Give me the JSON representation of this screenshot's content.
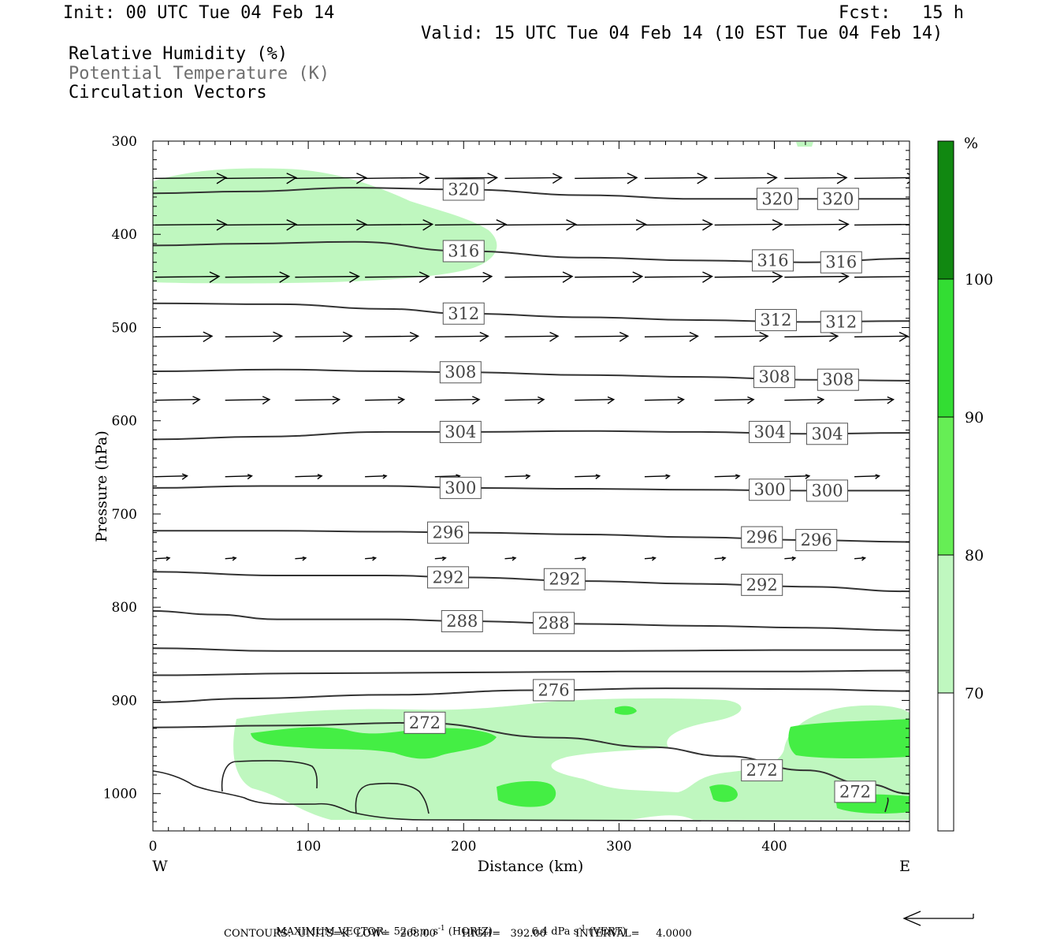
{
  "header": {
    "init": "Init: 00 UTC Tue 04 Feb 14",
    "fcst": "Fcst:   15 h",
    "valid": "Valid: 15 UTC Tue 04 Feb 14 (10 EST Tue 04 Feb 14)"
  },
  "legend": {
    "line1": "Relative Humidity (%)",
    "line2": "Potential Temperature (K)",
    "line3": "Circulation Vectors"
  },
  "chart_data": {
    "type": "contour",
    "xlabel": "Distance (km)",
    "ylabel": "Pressure (hPa)",
    "xlim": [
      0,
      487
    ],
    "ylim": [
      1040,
      300
    ],
    "x_ticks": [
      0,
      100,
      200,
      300,
      400
    ],
    "y_ticks": [
      300,
      400,
      500,
      600,
      700,
      800,
      900,
      1000
    ],
    "x_end_labels": {
      "left": "W",
      "right": "E"
    },
    "colorbar": {
      "unit": "%",
      "levels": [
        70,
        80,
        90,
        100
      ],
      "colors": [
        "#ffffff",
        "#bff7bf",
        "#66ee55",
        "#33dd33",
        "#118811"
      ]
    },
    "theta_contours": [
      {
        "label": "320",
        "points": [
          [
            0,
            356
          ],
          [
            60,
            354
          ],
          [
            130,
            350
          ],
          [
            200,
            352
          ],
          [
            280,
            358
          ],
          [
            350,
            362
          ],
          [
            420,
            362
          ],
          [
            487,
            362
          ]
        ]
      },
      {
        "label": "316",
        "points": [
          [
            0,
            412
          ],
          [
            60,
            410
          ],
          [
            130,
            408
          ],
          [
            200,
            418
          ],
          [
            280,
            425
          ],
          [
            350,
            428
          ],
          [
            420,
            430
          ],
          [
            487,
            426
          ]
        ]
      },
      {
        "label": "312",
        "points": [
          [
            0,
            474
          ],
          [
            80,
            475
          ],
          [
            150,
            480
          ],
          [
            200,
            485
          ],
          [
            280,
            489
          ],
          [
            350,
            492
          ],
          [
            420,
            494
          ],
          [
            487,
            493
          ]
        ]
      },
      {
        "label": "308",
        "points": [
          [
            0,
            547
          ],
          [
            80,
            545
          ],
          [
            150,
            547
          ],
          [
            200,
            548
          ],
          [
            280,
            551
          ],
          [
            350,
            553
          ],
          [
            420,
            556
          ],
          [
            487,
            557
          ]
        ]
      },
      {
        "label": "304",
        "points": [
          [
            0,
            620
          ],
          [
            70,
            617
          ],
          [
            150,
            612
          ],
          [
            200,
            612
          ],
          [
            280,
            611
          ],
          [
            350,
            612
          ],
          [
            420,
            614
          ],
          [
            487,
            613
          ]
        ]
      },
      {
        "label": "300",
        "points": [
          [
            0,
            672
          ],
          [
            70,
            670
          ],
          [
            150,
            670
          ],
          [
            200,
            672
          ],
          [
            280,
            673
          ],
          [
            350,
            674
          ],
          [
            420,
            675
          ],
          [
            487,
            675
          ]
        ]
      },
      {
        "label": "296",
        "points": [
          [
            0,
            718
          ],
          [
            80,
            718
          ],
          [
            150,
            719
          ],
          [
            200,
            720
          ],
          [
            280,
            722
          ],
          [
            350,
            725
          ],
          [
            420,
            728
          ],
          [
            487,
            730
          ]
        ]
      },
      {
        "label": "292",
        "points": [
          [
            0,
            762
          ],
          [
            80,
            766
          ],
          [
            150,
            766
          ],
          [
            200,
            768
          ],
          [
            280,
            772
          ],
          [
            350,
            775
          ],
          [
            420,
            778
          ],
          [
            487,
            783
          ]
        ]
      },
      {
        "label": "288",
        "points": [
          [
            0,
            804
          ],
          [
            40,
            808
          ],
          [
            80,
            813
          ],
          [
            150,
            813
          ],
          [
            200,
            815
          ],
          [
            280,
            818
          ],
          [
            350,
            820
          ],
          [
            420,
            822
          ],
          [
            487,
            825
          ]
        ]
      },
      {
        "points": [
          [
            0,
            844
          ],
          [
            80,
            847
          ],
          [
            200,
            847
          ],
          [
            300,
            847
          ],
          [
            400,
            846
          ],
          [
            487,
            846
          ]
        ]
      },
      {
        "points": [
          [
            0,
            873
          ],
          [
            100,
            871
          ],
          [
            200,
            870
          ],
          [
            300,
            869
          ],
          [
            400,
            869
          ],
          [
            487,
            868
          ]
        ]
      },
      {
        "label": "276",
        "points": [
          [
            0,
            902
          ],
          [
            60,
            898
          ],
          [
            150,
            894
          ],
          [
            250,
            889
          ],
          [
            330,
            887
          ],
          [
            420,
            888
          ],
          [
            487,
            890
          ]
        ]
      },
      {
        "label": "272",
        "points": [
          [
            0,
            929
          ],
          [
            80,
            927
          ],
          [
            170,
            924
          ],
          [
            260,
            940
          ],
          [
            320,
            950
          ],
          [
            370,
            960
          ],
          [
            420,
            975
          ],
          [
            460,
            990
          ],
          [
            487,
            1000
          ]
        ]
      }
    ],
    "theta_label_positions": [
      {
        "label": "320",
        "x": [
          200,
          402,
          441
        ],
        "p": [
          352,
          362,
          362
        ]
      },
      {
        "label": "316",
        "x": [
          200,
          399,
          443
        ],
        "p": [
          418,
          428,
          430
        ]
      },
      {
        "label": "312",
        "x": [
          200,
          401,
          443
        ],
        "p": [
          485,
          492,
          494
        ]
      },
      {
        "label": "308",
        "x": [
          198,
          400,
          441
        ],
        "p": [
          548,
          553,
          556
        ]
      },
      {
        "label": "304",
        "x": [
          198,
          397,
          434
        ],
        "p": [
          612,
          612,
          614
        ]
      },
      {
        "label": "300",
        "x": [
          198,
          397,
          434
        ],
        "p": [
          672,
          674,
          675
        ]
      },
      {
        "label": "296",
        "x": [
          190,
          392,
          427
        ],
        "p": [
          720,
          725,
          728
        ]
      },
      {
        "label": "292",
        "x": [
          190,
          265,
          392
        ],
        "p": [
          768,
          770,
          776
        ]
      },
      {
        "label": "288",
        "x": [
          199,
          258
        ],
        "p": [
          815,
          817
        ]
      },
      {
        "label": "276",
        "x": [
          258
        ],
        "p": [
          889
        ]
      },
      {
        "label": "272",
        "x": [
          175,
          392,
          452
        ],
        "p": [
          924,
          975,
          998
        ]
      }
    ],
    "vector_rows": [
      {
        "p": 340,
        "x": [
          0,
          45,
          90,
          135,
          180,
          225,
          270,
          315,
          360,
          405,
          450
        ],
        "u": [
          40,
          40,
          40,
          36,
          35,
          32,
          35,
          35,
          35,
          35,
          35
        ]
      },
      {
        "p": 390,
        "x": [
          0,
          45,
          90,
          135,
          180,
          225,
          270,
          315,
          360,
          405,
          450
        ],
        "u": [
          40,
          40,
          40,
          38,
          40,
          40,
          40,
          38,
          38,
          36,
          40
        ]
      },
      {
        "p": 446,
        "x": [
          0,
          45,
          90,
          135,
          180,
          225,
          270,
          315,
          360,
          405,
          450
        ],
        "u": [
          36,
          36,
          36,
          36,
          32,
          38,
          38,
          38,
          38,
          36,
          40
        ]
      },
      {
        "p": 510,
        "x": [
          0,
          45,
          90,
          135,
          180,
          225,
          270,
          315,
          360,
          405,
          450
        ],
        "u": [
          32,
          32,
          32,
          30,
          30,
          30,
          30,
          30,
          30,
          30,
          30
        ]
      },
      {
        "p": 578,
        "x": [
          0,
          45,
          90,
          135,
          180,
          225,
          270,
          315,
          360,
          405,
          450
        ],
        "u": [
          25,
          25,
          25,
          22,
          25,
          22,
          22,
          22,
          22,
          22,
          22
        ]
      },
      {
        "p": 660,
        "x": [
          0,
          45,
          90,
          135,
          180,
          225,
          270,
          315,
          360,
          405,
          450
        ],
        "u": [
          18,
          15,
          15,
          12,
          14,
          14,
          14,
          14,
          14,
          14,
          14
        ]
      },
      {
        "p": 748,
        "x": [
          0,
          45,
          90,
          135,
          180,
          225,
          270,
          315,
          360,
          405,
          450
        ],
        "u": [
          8,
          6,
          6,
          6,
          6,
          6,
          6,
          6,
          6,
          6,
          6
        ]
      }
    ],
    "vector_scale": {
      "horiz": "52.6 m s⁻¹",
      "vert": "6.4 dPa s⁻¹"
    }
  },
  "footer": {
    "max_vector_label": "MAXIMUM VECTOR:",
    "horiz": "52.6 m s",
    "horiz_exp": "-1",
    "horiz_tag": "(HORIZ)",
    "vert": "6.4 dPa s",
    "vert_exp": "-1",
    "vert_tag": "(VERT)",
    "contours": "CONTOURS:  UNITS=K  LOW=   268.00        HIGH=   392.00         INTERVAL=     4.0000"
  }
}
